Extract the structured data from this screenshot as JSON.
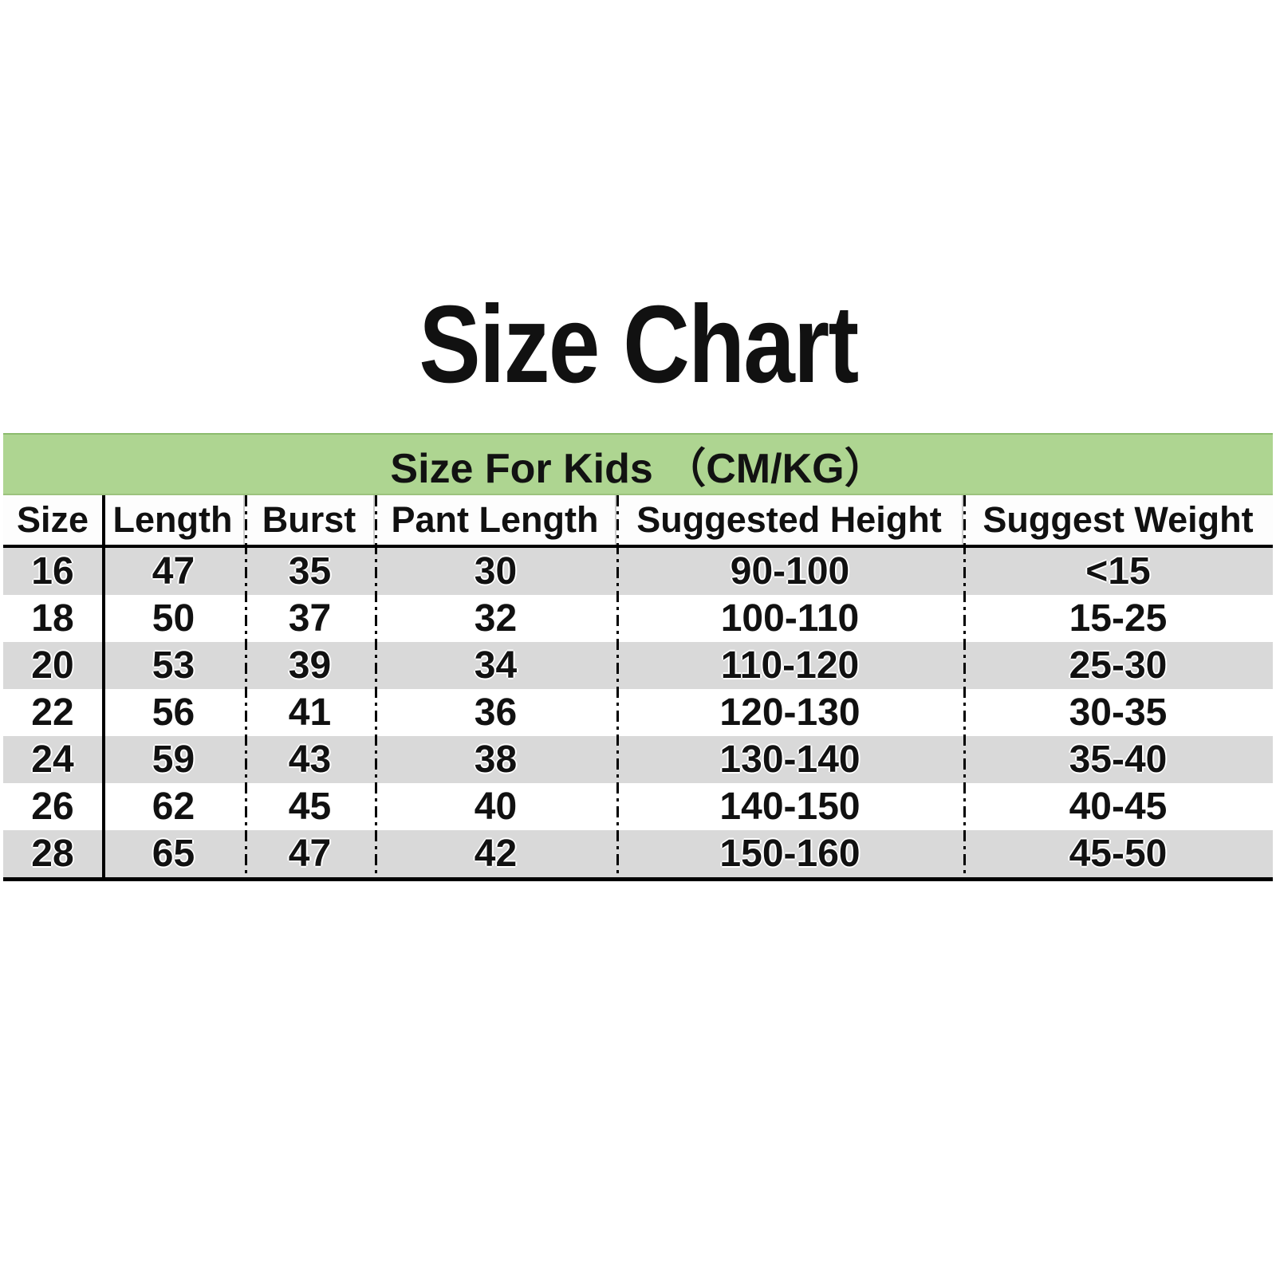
{
  "page": {
    "title": "Size Chart"
  },
  "table": {
    "banner": "Size For Kids （CM/KG）",
    "columns": [
      "Size",
      "Length",
      "Burst",
      "Pant Length",
      "Suggested Height",
      "Suggest Weight"
    ],
    "rows": [
      [
        "16",
        "47",
        "35",
        "30",
        "90-100",
        "<15"
      ],
      [
        "18",
        "50",
        "37",
        "32",
        "100-110",
        "15-25"
      ],
      [
        "20",
        "53",
        "39",
        "34",
        "110-120",
        "25-30"
      ],
      [
        "22",
        "56",
        "41",
        "36",
        "120-130",
        "30-35"
      ],
      [
        "24",
        "59",
        "43",
        "38",
        "130-140",
        "35-40"
      ],
      [
        "26",
        "62",
        "45",
        "40",
        "140-150",
        "40-45"
      ],
      [
        "28",
        "65",
        "47",
        "42",
        "150-160",
        "45-50"
      ]
    ],
    "colors": {
      "banner_green": "#aed591",
      "row_gray": "#d9d9d9",
      "row_white": "#ffffff",
      "text": "#111111",
      "border": "#000000"
    }
  },
  "chart_data": {
    "type": "table",
    "title": "Size Chart",
    "subtitle": "Size For Kids （CM/KG）",
    "units": "CM/KG",
    "columns": [
      "Size",
      "Length",
      "Burst",
      "Pant Length",
      "Suggested Height",
      "Suggest Weight"
    ],
    "rows": [
      [
        16,
        47,
        35,
        30,
        "90-100",
        "<15"
      ],
      [
        18,
        50,
        37,
        32,
        "100-110",
        "15-25"
      ],
      [
        20,
        53,
        39,
        34,
        "110-120",
        "25-30"
      ],
      [
        22,
        56,
        41,
        36,
        "120-130",
        "30-35"
      ],
      [
        24,
        59,
        43,
        38,
        "130-140",
        "35-40"
      ],
      [
        26,
        62,
        45,
        40,
        "140-150",
        "40-45"
      ],
      [
        28,
        65,
        47,
        42,
        "150-160",
        "45-50"
      ]
    ],
    "layout_hints": {
      "striped_rows": true,
      "stripe_color": "#d9d9d9",
      "banner_color": "#aed591",
      "first_column_divider": "solid",
      "other_column_dividers": "dash-dot"
    }
  }
}
